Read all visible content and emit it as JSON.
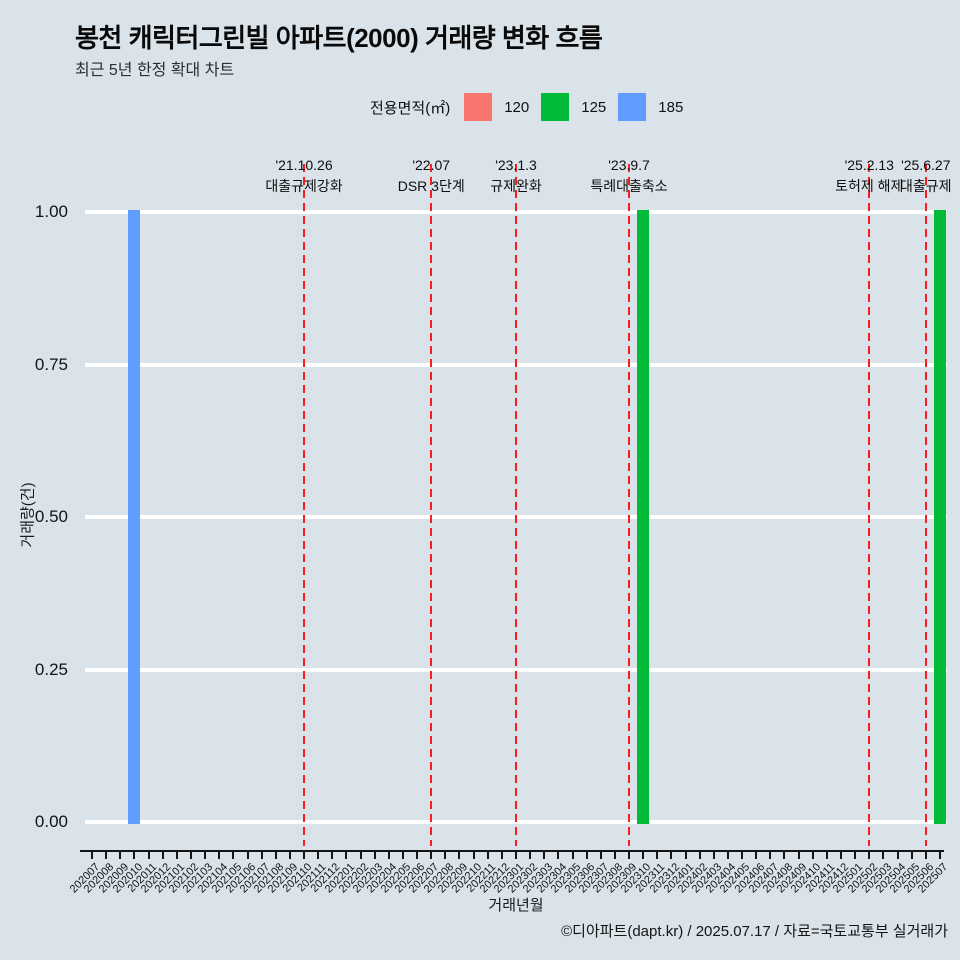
{
  "title": "봉천 캐릭터그린빌 아파트(2000) 거래량 변화 흐름",
  "subtitle": "최근 5년 한정 확대 차트",
  "legend": {
    "title": "전용면적(㎡)",
    "items": [
      {
        "label": "120",
        "color": "#F8766D"
      },
      {
        "label": "125",
        "color": "#00BA38"
      },
      {
        "label": "185",
        "color": "#619CFF"
      }
    ]
  },
  "chart_data": {
    "type": "bar",
    "xlabel": "거래년월",
    "ylabel": "거래량(건)",
    "ylim": [
      0,
      1
    ],
    "grid": true,
    "legend_position": "top",
    "yticks": [
      0,
      0.25,
      0.5,
      0.75,
      1
    ],
    "ytick_labels": [
      "0.00",
      "0.25",
      "0.50",
      "0.75",
      "1.00"
    ],
    "categories": [
      "202007",
      "202008",
      "202009",
      "202010",
      "202011",
      "202012",
      "202101",
      "202102",
      "202103",
      "202104",
      "202105",
      "202106",
      "202107",
      "202108",
      "202109",
      "202110",
      "202111",
      "202112",
      "202201",
      "202202",
      "202203",
      "202204",
      "202205",
      "202206",
      "202207",
      "202208",
      "202209",
      "202210",
      "202211",
      "202212",
      "202301",
      "202302",
      "202303",
      "202304",
      "202305",
      "202306",
      "202307",
      "202308",
      "202309",
      "202310",
      "202311",
      "202312",
      "202401",
      "202402",
      "202403",
      "202404",
      "202405",
      "202406",
      "202407",
      "202408",
      "202409",
      "202410",
      "202411",
      "202412",
      "202501",
      "202502",
      "202503",
      "202504",
      "202505",
      "202506",
      "202507"
    ],
    "bars": [
      {
        "month": "202010",
        "value": 1,
        "series": "185",
        "color": "#619CFF"
      },
      {
        "month": "202310",
        "value": 1,
        "series": "125",
        "color": "#00BA38"
      },
      {
        "month": "202507",
        "value": 1,
        "series": "125",
        "color": "#00BA38"
      }
    ],
    "event_lines": [
      {
        "month": "202110",
        "date": "'21.10.26",
        "label": "대출규제강화"
      },
      {
        "month": "202207",
        "date": "'22.07",
        "label": "DSR 3단계"
      },
      {
        "month": "202301",
        "date": "'23.1.3",
        "label": "규제완화"
      },
      {
        "month": "202309",
        "date": "'23.9.7",
        "label": "특례대출축소"
      },
      {
        "month": "202502",
        "date": "'25.2.13",
        "label": "토허제 해제"
      },
      {
        "month": "202506",
        "date": "'25.6.27",
        "label": "대출규제"
      }
    ]
  },
  "footer": "©디아파트(dapt.kr) / 2025.07.17 / 자료=국토교통부 실거래가",
  "colors": {
    "background": "#d9e3e9",
    "grid": "#ffffff",
    "event_line": "#fb1d1d",
    "axis": "#161616"
  }
}
